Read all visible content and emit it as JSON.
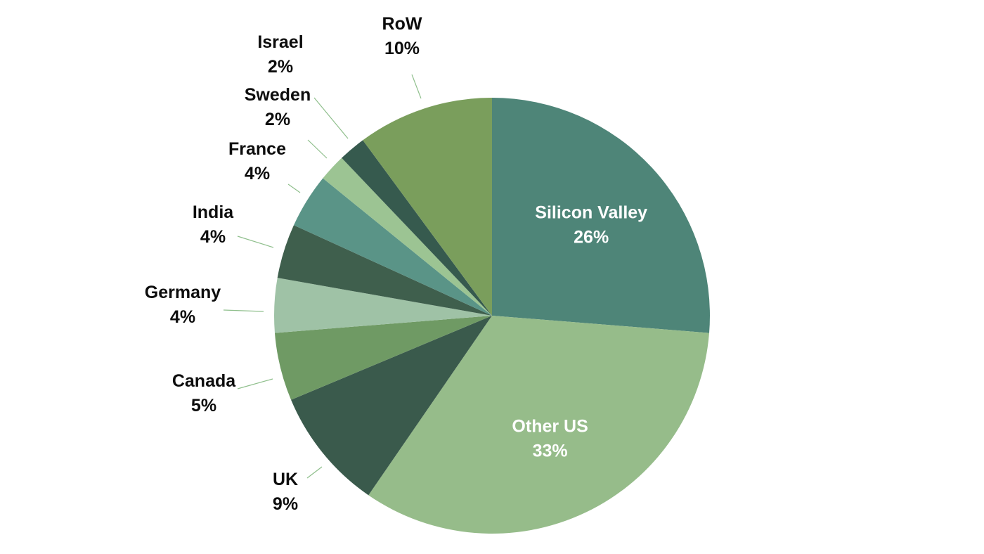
{
  "chart_data": {
    "type": "pie",
    "title": "",
    "slices": [
      {
        "label": "Silicon Valley",
        "value_label": "26%",
        "value": 26,
        "color": "#4e8578"
      },
      {
        "label": "Other US",
        "value_label": "33%",
        "value": 33,
        "color": "#96bc8a"
      },
      {
        "label": "UK",
        "value_label": "9%",
        "value": 9,
        "color": "#3a5a4c"
      },
      {
        "label": "Canada",
        "value_label": "5%",
        "value": 5,
        "color": "#6f9a64"
      },
      {
        "label": "Germany",
        "value_label": "4%",
        "value": 4,
        "color": "#9fc2a6"
      },
      {
        "label": "India",
        "value_label": "4%",
        "value": 4,
        "color": "#3f5f4d"
      },
      {
        "label": "France",
        "value_label": "4%",
        "value": 4,
        "color": "#5a9487"
      },
      {
        "label": "Sweden",
        "value_label": "2%",
        "value": 2,
        "color": "#9cc493"
      },
      {
        "label": "Israel",
        "value_label": "2%",
        "value": 2,
        "color": "#365a4e"
      },
      {
        "label": "RoW",
        "value_label": "10%",
        "value": 10,
        "color": "#7a9e5c"
      }
    ],
    "start": "12 o'clock",
    "direction": "clockwise",
    "legend": "none",
    "data_labels": "category name and percentage"
  }
}
